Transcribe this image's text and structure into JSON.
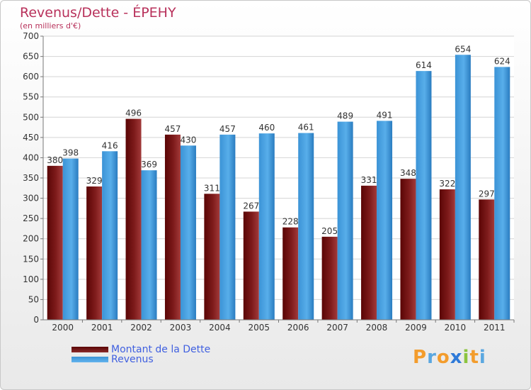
{
  "title": "Revenus/Dette - ÉPEHY",
  "subtitle": "(en milliers d'€)",
  "logo": {
    "letters": [
      {
        "ch": "P",
        "color": "#f39c2c"
      },
      {
        "ch": "r",
        "color": "#5aa7e0"
      },
      {
        "ch": "o",
        "color": "#f39c2c"
      },
      {
        "ch": "x",
        "color": "#2f7ad8"
      },
      {
        "ch": "i",
        "color": "#8cc43f"
      },
      {
        "ch": "t",
        "color": "#f39c2c"
      },
      {
        "ch": "i",
        "color": "#5aa7e0"
      }
    ]
  },
  "chart_data": {
    "type": "bar",
    "title": "Revenus/Dette - ÉPEHY",
    "subtitle": "(en milliers d'€)",
    "categories": [
      "2000",
      "2001",
      "2002",
      "2003",
      "2004",
      "2005",
      "2006",
      "2007",
      "2008",
      "2009",
      "2010",
      "2011"
    ],
    "series": [
      {
        "name": "Montant de la Dette",
        "color": "#7b1616",
        "values": [
          380,
          329,
          496,
          457,
          311,
          267,
          228,
          205,
          331,
          348,
          322,
          297
        ]
      },
      {
        "name": "Revenus",
        "color": "#4fa6e6",
        "values": [
          398,
          416,
          369,
          430,
          457,
          460,
          461,
          489,
          491,
          614,
          654,
          624
        ]
      }
    ],
    "ylim": [
      0,
      700
    ],
    "yticks": [
      0,
      50,
      100,
      150,
      200,
      250,
      300,
      350,
      400,
      450,
      500,
      550,
      600,
      650,
      700
    ],
    "grid": true,
    "legend_position": "bottom-left"
  }
}
